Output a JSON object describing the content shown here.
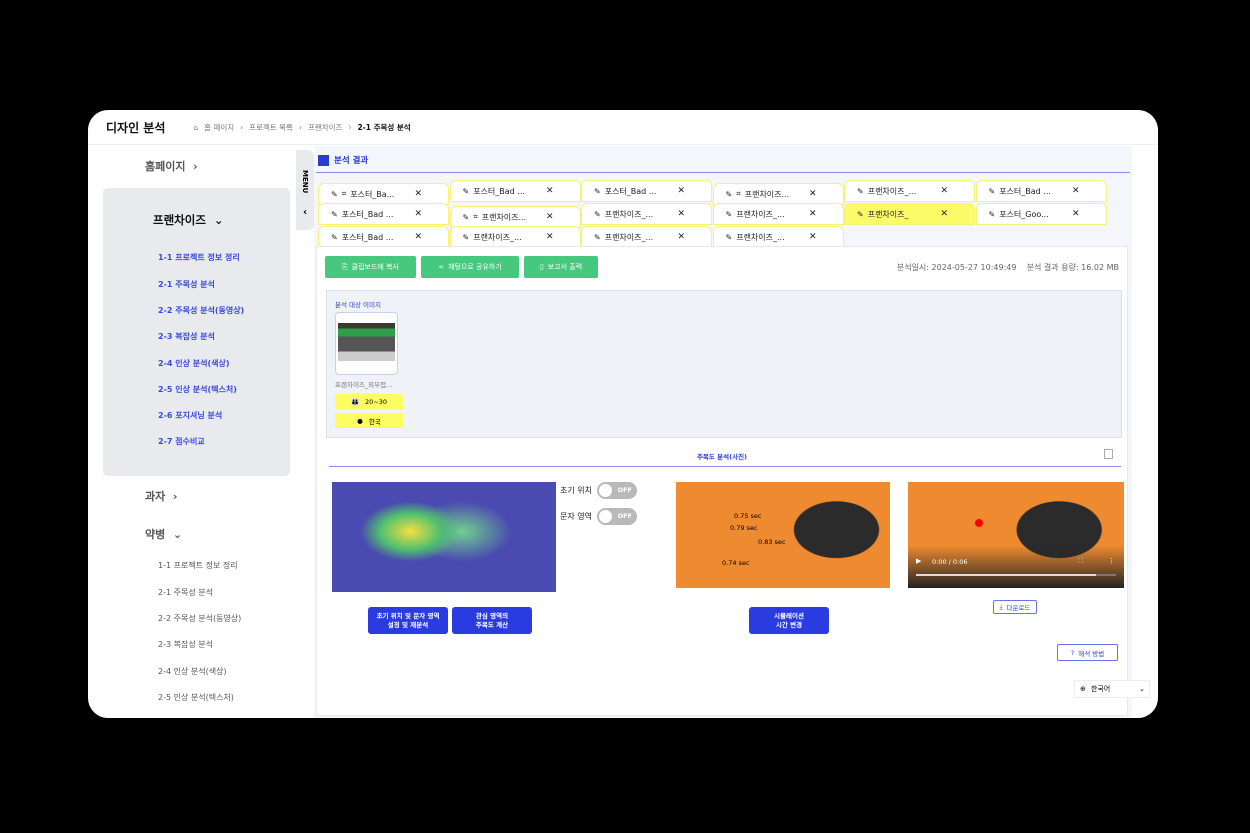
{
  "header": {
    "title": "디자인 분석",
    "breadcrumb": [
      "홈 페이지",
      "프로젝트 목록",
      "프랜차이즈",
      "2-1 주목성 분석"
    ]
  },
  "sidebar": {
    "home": "홈페이지",
    "group": {
      "label": "프랜차이즈",
      "items": [
        "1-1 프로젝트 정보 정리",
        "2-1 주목성 분석",
        "2-2 주목성 분석(동영상)",
        "2-3 복잡성 분석",
        "2-4 인상 분석(색상)",
        "2-5 인상 분석(텍스처)",
        "2-6 포지셔닝 분석",
        "2-7 점수비교"
      ]
    },
    "gwaja": "과자",
    "yakbyeong": {
      "label": "약병",
      "items": [
        "1-1 프로젝트 정보 정리",
        "2-1 주목성 분석",
        "2-2 주목성 분석(동영상)",
        "2-3 복잡성 분석",
        "2-4 인상 분석(색상)",
        "2-5 인상 분석(텍스처)"
      ]
    }
  },
  "menu_tab": {
    "label": "MENU",
    "collapse": "‹"
  },
  "section_title": "분석 결과",
  "tabs": [
    {
      "label": "포스터_Ba...",
      "crop": true
    },
    {
      "label": "포스터_Bad ..."
    },
    {
      "label": "포스터_Bad ..."
    },
    {
      "label": "프랜차이즈...",
      "crop": true
    },
    {
      "label": "프랜차이즈_..."
    },
    {
      "label": "포스터_Bad ..."
    },
    {
      "label": "포스터_Bad ..."
    },
    {
      "label": "프랜차이즈...",
      "crop": true
    },
    {
      "label": "프랜차이즈_..."
    },
    {
      "label": "프랜차이즈_..."
    },
    {
      "label": "프랜차이즈_",
      "active": true
    },
    {
      "label": "포스터_Goo..."
    },
    {
      "label": "포스터_Bad ..."
    },
    {
      "label": "프랜차이즈_..."
    },
    {
      "label": "프랜차이즈_..."
    },
    {
      "label": "프랜차이즈_..."
    }
  ],
  "actions": {
    "copy": "클립보드에 복사",
    "share": "채팅으로 공유하기",
    "report": "보고서 출력"
  },
  "meta": {
    "date": "분석일시: 2024-05-27 10:49:49",
    "size": "분석 결과 용량: 16.02 MB"
  },
  "target": {
    "title": "분석 대상 이미지",
    "filename": "프랜차이즈_외부접...",
    "age": "20~30",
    "country": "한국"
  },
  "attention": {
    "title": "주목도 분석(사진)",
    "toggles": [
      {
        "label": "초기 위치",
        "state": "OFF"
      },
      {
        "label": "문자 영역",
        "state": "OFF"
      }
    ],
    "btn_reanalyze": [
      "초기 위치 및 문자 영역",
      "설정 및 재분석"
    ],
    "btn_roi": [
      "관심 영역의",
      "주목도 계산"
    ],
    "btn_sim": [
      "시뮬레이션",
      "시간 변경"
    ],
    "fixations": [
      "0.75 sec",
      "0.79 sec",
      "0.83 sec",
      "0.74 sec"
    ],
    "video_time": "0:00 / 0:06",
    "video_progress": 0.9,
    "download": "다운로드",
    "method": "해석 방법"
  },
  "language": "한국어",
  "colors": {
    "accent": "#2a3be0",
    "green": "#46c87f",
    "tag": "#fdfd61"
  }
}
